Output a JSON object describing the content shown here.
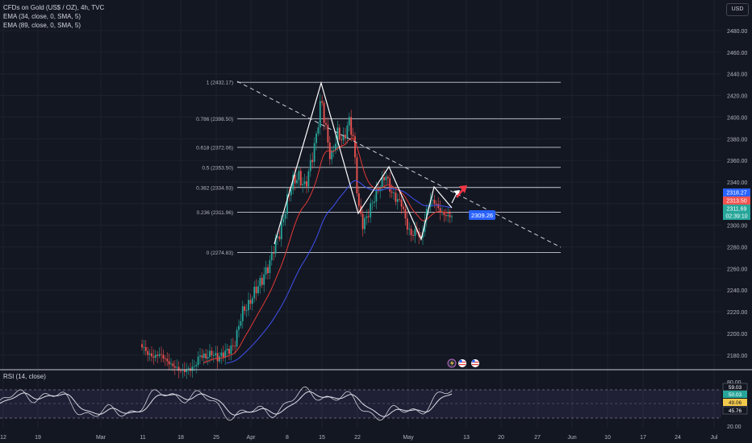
{
  "legend": {
    "title": "CFDs on Gold (US$ / OZ), 4h, TVC",
    "ema1": "EMA (34, close, 0, SMA, 5)",
    "ema2": "EMA (89, close, 0, SMA, 5)"
  },
  "rsi_legend": "RSI (14, close)",
  "currency_button": "USD",
  "colors": {
    "background": "#131722",
    "up_candle": "#26a69a",
    "down_candle": "#ef5350",
    "ema34": "#e53935",
    "ema89": "#3f51f0",
    "rsi_line": "#d1d4dc",
    "rsi_band": "#7e57c2",
    "fib_lines": "#c8cbd4",
    "trendline": "#d1d4dc",
    "projection_arrow": "#f23645",
    "price_tag_blue": "#2962ff"
  },
  "chart_data": [
    {
      "type": "candlestick",
      "price_axis_ticks": [
        "2480.00",
        "2460.00",
        "2440.00",
        "2420.00",
        "2400.00",
        "2380.00",
        "2360.00",
        "2340.00",
        "2320.00",
        "2300.00",
        "2280.00",
        "2260.00",
        "2240.00",
        "2220.00",
        "2200.00",
        "2180.00"
      ],
      "ylim": [
        2170,
        2492
      ],
      "time_axis_ticks": [
        "12",
        "19",
        "Mar",
        "11",
        "18",
        "25",
        "Apr",
        "8",
        "15",
        "22",
        "May",
        "13",
        "20",
        "27",
        "Jun",
        "10",
        "17",
        "24",
        "Jul"
      ],
      "fibonacci_levels": [
        {
          "label": "1 (2432.17)",
          "value": 2432.17
        },
        {
          "label": "0.786 (2398.50)",
          "value": 2398.5
        },
        {
          "label": "0.618 (2372.06)",
          "value": 2372.06
        },
        {
          "label": "0.5 (2353.50)",
          "value": 2353.5
        },
        {
          "label": "0.382 (2334.93)",
          "value": 2334.93
        },
        {
          "label": "0.236 (2311.96)",
          "value": 2311.96
        },
        {
          "label": "0 (2274.83)",
          "value": 2274.83
        }
      ],
      "price_labels": [
        {
          "text": "2318.27",
          "kind": "ema89"
        },
        {
          "text": "2313.50",
          "kind": "ema34"
        },
        {
          "text": "2311.69",
          "kind": "last"
        },
        {
          "text": "02:39:10",
          "kind": "countdown"
        }
      ],
      "annotation_price": "2309.26",
      "series": [
        {
          "name": "EMA (34, close, 0, SMA, 5)"
        },
        {
          "name": "EMA (89, close, 0, SMA, 5)"
        }
      ]
    },
    {
      "type": "line",
      "title": "RSI (14, close)",
      "ylim": [
        20,
        80
      ],
      "axis_ticks": [
        "80.00",
        "20.00"
      ],
      "band": [
        30,
        70
      ],
      "value_labels": [
        "59.03",
        "50.03",
        "49.06",
        "45.76"
      ]
    }
  ]
}
